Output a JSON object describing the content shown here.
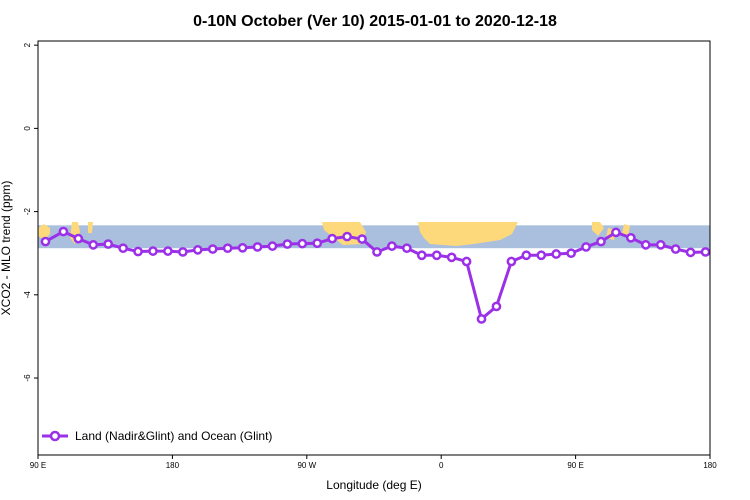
{
  "chart_data": {
    "type": "line",
    "title": "0-10N October (Ver 10)   2015-01-01 to 2020-12-18",
    "xlabel": "Longitude (deg E)",
    "ylabel": "XCO2 - MLO trend (ppm)",
    "xlim": [
      90,
      540
    ],
    "ylim": [
      -7.85,
      2.1
    ],
    "x_ticks": [
      {
        "value": 90,
        "label": "90 E"
      },
      {
        "value": 180,
        "label": "180"
      },
      {
        "value": 270,
        "label": "90 W"
      },
      {
        "value": 360,
        "label": "0"
      },
      {
        "value": 450,
        "label": "90 E"
      },
      {
        "value": 540,
        "label": "180"
      }
    ],
    "y_ticks": [
      {
        "value": 2,
        "label": "2"
      },
      {
        "value": 0,
        "label": "0"
      },
      {
        "value": -2,
        "label": "-2"
      },
      {
        "value": -4,
        "label": "-4"
      },
      {
        "value": -6,
        "label": "-6"
      }
    ],
    "grid": false,
    "legend_position": "bottom-left",
    "background_map": {
      "lat_range": "0-10N",
      "ocean_color": "#a9bfdd",
      "land_color": "#fed97b"
    },
    "series": [
      {
        "name": "Land (Nadir&Glint) and Ocean (Glint)",
        "color": "#9b30e8",
        "x": [
          95,
          107,
          117,
          127,
          137,
          147,
          157,
          167,
          177,
          187,
          197,
          207,
          217,
          227,
          237,
          247,
          257,
          267,
          277,
          287,
          297,
          307,
          317,
          327,
          337,
          347,
          357,
          367,
          377,
          387,
          397,
          407,
          417,
          427,
          437,
          447,
          457,
          467,
          477,
          487,
          497,
          507,
          517,
          527,
          537
        ],
        "values": [
          -2.72,
          -2.48,
          -2.65,
          -2.8,
          -2.78,
          -2.88,
          -2.96,
          -2.95,
          -2.95,
          -2.97,
          -2.92,
          -2.9,
          -2.88,
          -2.87,
          -2.85,
          -2.83,
          -2.78,
          -2.77,
          -2.76,
          -2.65,
          -2.6,
          -2.66,
          -2.97,
          -2.83,
          -2.88,
          -3.05,
          -3.05,
          -3.1,
          -3.2,
          -4.58,
          -4.28,
          -3.2,
          -3.05,
          -3.05,
          -3.02,
          -3.0,
          -2.85,
          -2.72,
          -2.5,
          -2.63,
          -2.8,
          -2.8,
          -2.9,
          -2.98,
          -2.97
        ]
      }
    ]
  }
}
